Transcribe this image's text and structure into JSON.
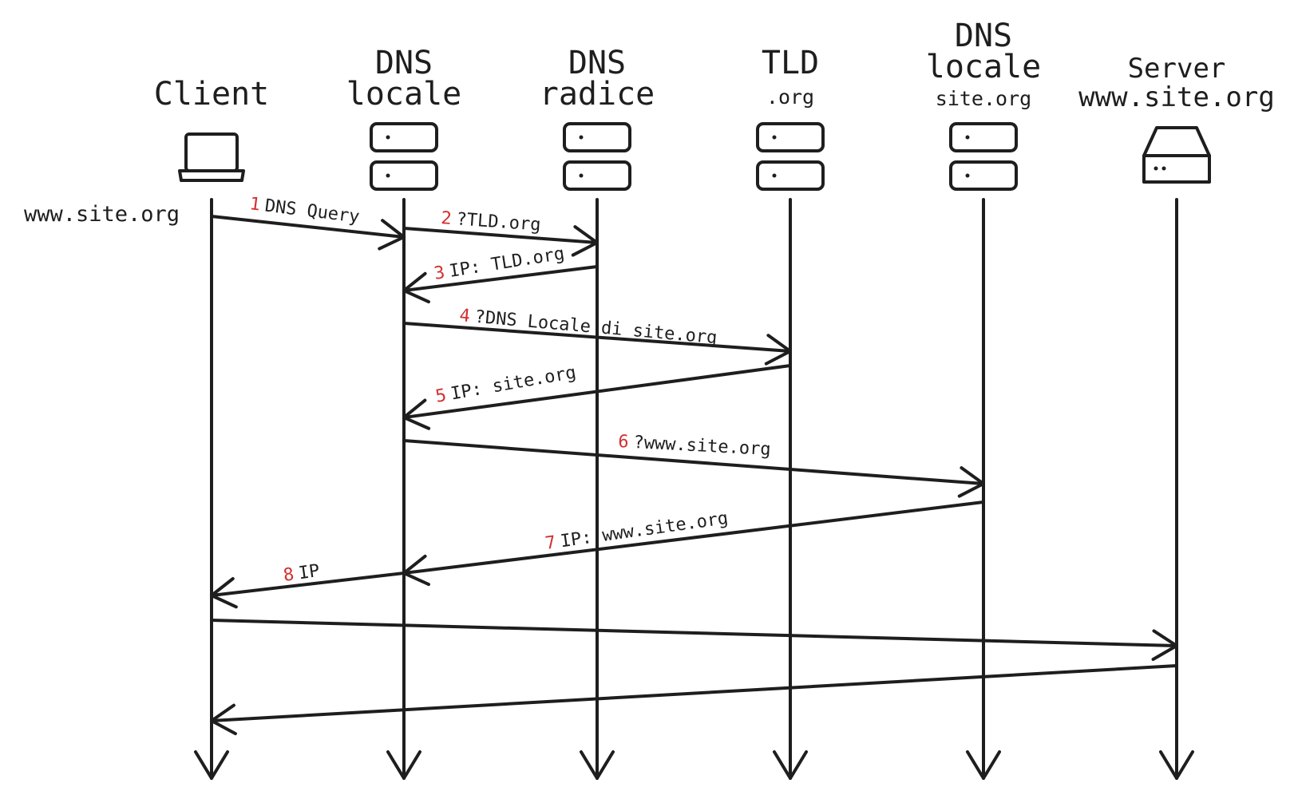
{
  "actors": [
    {
      "id": "client",
      "lines": [
        "Client"
      ],
      "sub": "",
      "icon": "laptop-icon"
    },
    {
      "id": "dns-locale",
      "lines": [
        "DNS",
        "locale"
      ],
      "sub": "",
      "icon": "server-rack-icon"
    },
    {
      "id": "dns-radice",
      "lines": [
        "DNS",
        "radice"
      ],
      "sub": "",
      "icon": "server-rack-icon"
    },
    {
      "id": "tld",
      "lines": [
        "TLD"
      ],
      "sub": ".org",
      "icon": "server-rack-icon"
    },
    {
      "id": "dns-locale-site",
      "lines": [
        "DNS",
        "locale"
      ],
      "sub": "site.org",
      "icon": "server-rack-icon"
    },
    {
      "id": "server",
      "lines": [
        "Server",
        "www.site.org"
      ],
      "sub": "",
      "icon": "server-box-icon"
    }
  ],
  "client_label": "www.site.org",
  "messages": [
    {
      "num": "1",
      "label": "DNS Query",
      "from": 0,
      "to": 1
    },
    {
      "num": "2",
      "label": "?TLD.org",
      "from": 1,
      "to": 2
    },
    {
      "num": "3",
      "label": "IP: TLD.org",
      "from": 2,
      "to": 1
    },
    {
      "num": "4",
      "label": "?DNS Locale di site.org",
      "from": 1,
      "to": 3
    },
    {
      "num": "5",
      "label": "IP: site.org",
      "from": 3,
      "to": 1
    },
    {
      "num": "6",
      "label": "?www.site.org",
      "from": 1,
      "to": 4
    },
    {
      "num": "7",
      "label": "IP: www.site.org",
      "from": 4,
      "to": 1
    },
    {
      "num": "8",
      "label": "IP",
      "from": 1,
      "to": 0
    },
    {
      "num": "",
      "label": "",
      "from": 0,
      "to": 5
    },
    {
      "num": "",
      "label": "",
      "from": 5,
      "to": 0
    }
  ],
  "colors": {
    "ink": "#1e1e1e",
    "number": "#d32f2f",
    "background": "#ffffff"
  }
}
